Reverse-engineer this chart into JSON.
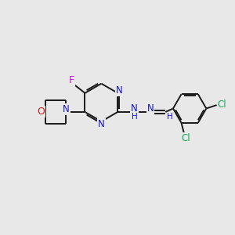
{
  "bg_color": "#e8e8e8",
  "bond_color": "#1a1a1a",
  "atom_colors": {
    "N": "#1414cc",
    "O": "#cc1414",
    "F": "#cc14cc",
    "Cl": "#14aa55",
    "H_blue": "#1414cc",
    "C": "#1a1a1a"
  },
  "figsize": [
    3.0,
    3.0
  ],
  "dpi": 100,
  "xlim": [
    0,
    10
  ],
  "ylim": [
    0,
    10
  ]
}
